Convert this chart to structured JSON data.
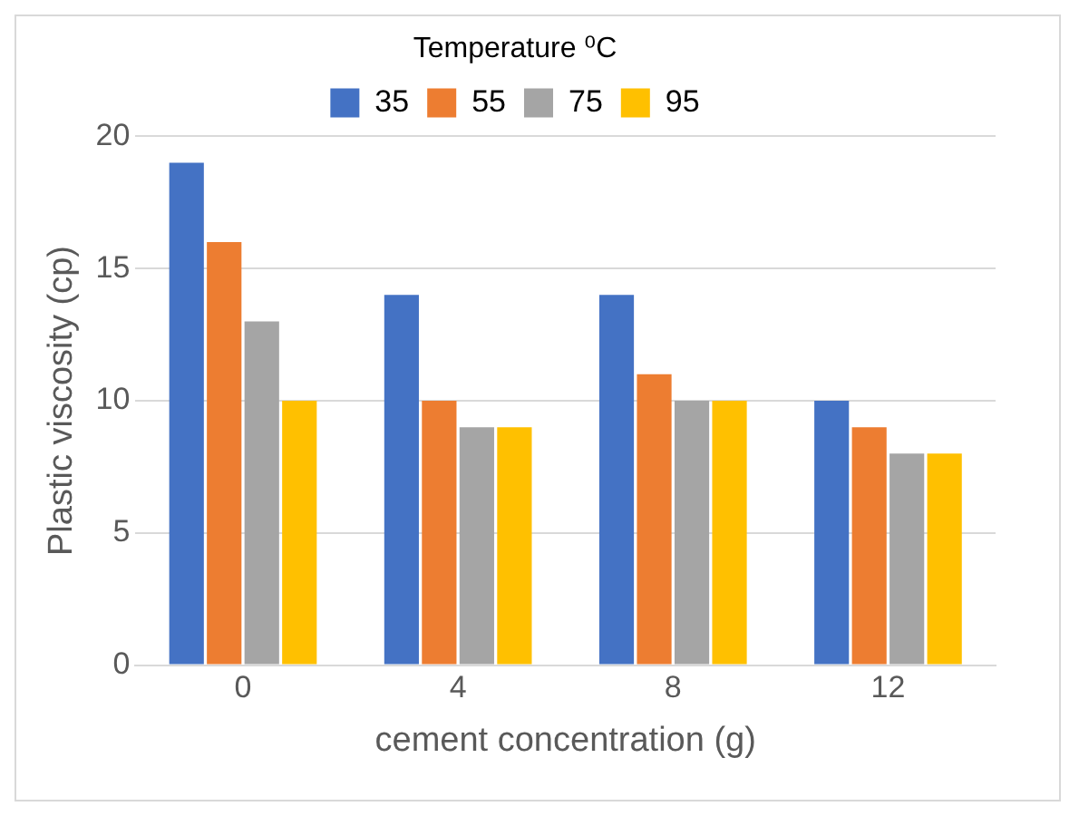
{
  "chart_data": {
    "type": "bar",
    "xlabel": "cement concentration (g)",
    "ylabel": "Plastic viscosity (cp)",
    "legend_title": "Temperature ⁰C",
    "categories": [
      "0",
      "4",
      "8",
      "12"
    ],
    "series": [
      {
        "name": "35",
        "color": "#4472c4",
        "values": [
          19,
          14,
          14,
          10
        ]
      },
      {
        "name": "55",
        "color": "#ed7d31",
        "values": [
          16,
          10,
          11,
          9
        ]
      },
      {
        "name": "75",
        "color": "#a5a5a5",
        "values": [
          13,
          9,
          10,
          8
        ]
      },
      {
        "name": "95",
        "color": "#ffc000",
        "values": [
          10,
          9,
          10,
          8
        ]
      }
    ],
    "ylim": [
      0,
      20
    ],
    "yticks": [
      0,
      5,
      10,
      15,
      20
    ],
    "grid": "y",
    "legend": "top"
  }
}
